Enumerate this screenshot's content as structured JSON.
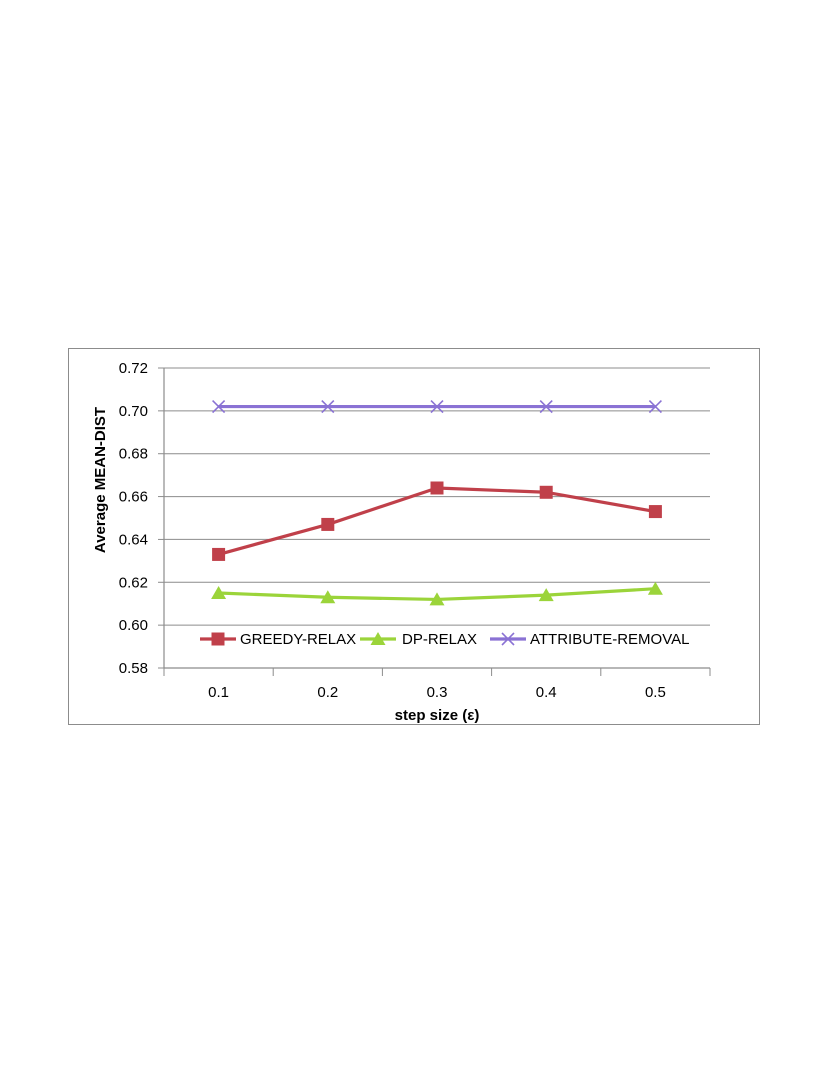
{
  "chart_data": {
    "type": "line",
    "title": "",
    "xlabel": "step size (ε)",
    "ylabel": "Average MEAN-DIST",
    "categories": [
      "0.1",
      "0.2",
      "0.3",
      "0.4",
      "0.5"
    ],
    "yticks": [
      "0.58",
      "0.60",
      "0.62",
      "0.64",
      "0.66",
      "0.68",
      "0.70",
      "0.72"
    ],
    "ylim": [
      0.58,
      0.72
    ],
    "grid": "horizontal",
    "legend_position": "bottom-inside",
    "series": [
      {
        "name": "GREEDY-RELAX",
        "values": [
          0.633,
          0.647,
          0.664,
          0.662,
          0.653
        ],
        "color": "#c0404a",
        "marker": "square"
      },
      {
        "name": "DP-RELAX",
        "values": [
          0.615,
          0.613,
          0.612,
          0.614,
          0.617
        ],
        "color": "#9bd43a",
        "marker": "triangle"
      },
      {
        "name": "ATTRIBUTE-REMOVAL",
        "values": [
          0.702,
          0.702,
          0.702,
          0.702,
          0.702
        ],
        "color": "#8a72d4",
        "marker": "x"
      }
    ]
  }
}
